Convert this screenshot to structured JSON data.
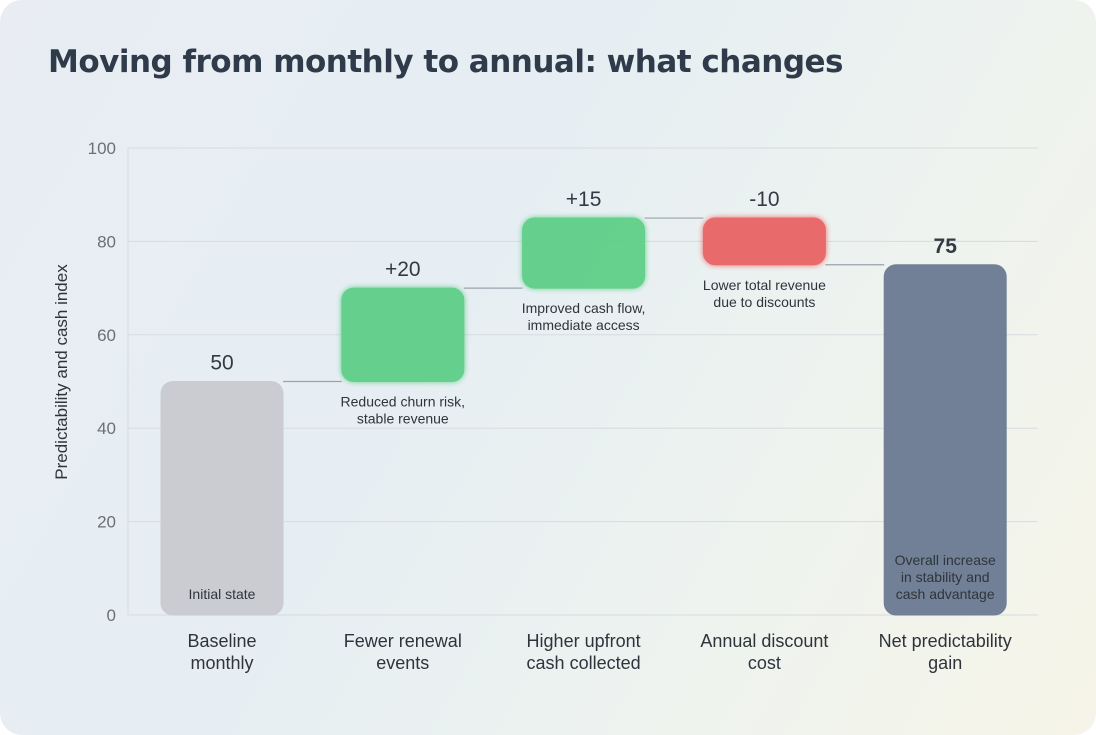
{
  "chart_data": {
    "type": "waterfall",
    "title": "Moving from monthly to annual: what changes",
    "xlabel": "",
    "ylabel": "Predictability and cash index",
    "ylim": [
      0,
      100
    ],
    "yticks": [
      0,
      20,
      40,
      60,
      80,
      100
    ],
    "grid": true,
    "categories": [
      "Baseline monthly",
      "Fewer renewal events",
      "Higher upfront cash collected",
      "Annual discount cost",
      "Net predictability gain"
    ],
    "category_lines": [
      [
        "Baseline",
        "monthly"
      ],
      [
        "Fewer renewal",
        "events"
      ],
      [
        "Higher upfront",
        "cash collected"
      ],
      [
        "Annual discount",
        "cost"
      ],
      [
        "Net predictability",
        "gain"
      ]
    ],
    "steps": [
      {
        "kind": "total",
        "value": 50,
        "label": "50",
        "annotation": [
          "Initial state"
        ]
      },
      {
        "kind": "increase",
        "value": 20,
        "label": "+20",
        "annotation": [
          "Reduced churn risk,",
          "stable revenue"
        ]
      },
      {
        "kind": "increase",
        "value": 15,
        "label": "+15",
        "annotation": [
          "Improved cash flow,",
          "immediate access"
        ]
      },
      {
        "kind": "decrease",
        "value": -10,
        "label": "-10",
        "annotation": [
          "Lower total revenue",
          "due to discounts"
        ]
      },
      {
        "kind": "total",
        "value": 75,
        "label": "75",
        "annotation": [
          "Overall increase",
          "in stability and",
          "cash advantage"
        ]
      }
    ],
    "colors": {
      "baseline": "#c9cbd0",
      "increase": "#5fcf88",
      "decrease": "#e96464",
      "net": "#6b7a92"
    }
  }
}
